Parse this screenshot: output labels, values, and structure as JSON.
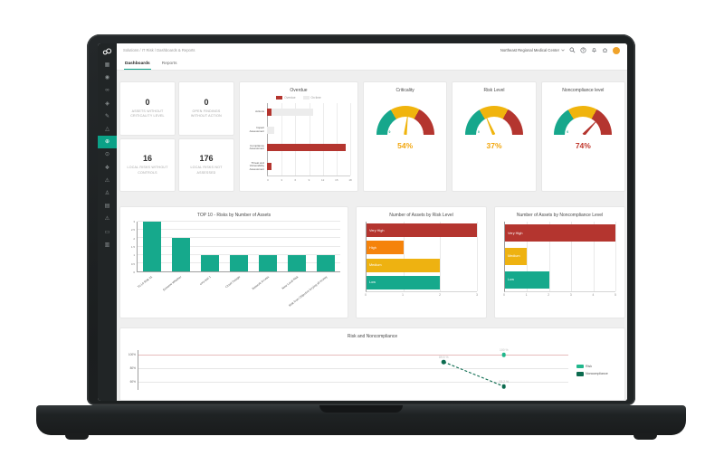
{
  "header": {
    "breadcrumb": "Solutions / IT Risk / Dashboards & Reports",
    "org_selector": "Northeast Regional Medical Center",
    "icons": [
      "search-icon",
      "help-icon",
      "notifications-icon",
      "home-icon"
    ],
    "avatar": {
      "initials": "",
      "color": "#f0a32a"
    }
  },
  "tabs": [
    {
      "label": "Dashboards",
      "active": true
    },
    {
      "label": "Reports",
      "active": false
    }
  ],
  "sidebar": {
    "items": [
      {
        "name": "dashboard",
        "glyph": "▦",
        "active": false
      },
      {
        "name": "monitor",
        "glyph": "◉",
        "active": false
      },
      {
        "name": "integrations",
        "glyph": "∞",
        "active": false
      },
      {
        "name": "objectives",
        "glyph": "◈",
        "active": false
      },
      {
        "name": "assessments",
        "glyph": "✎",
        "active": false
      },
      {
        "name": "incidents",
        "glyph": "△",
        "active": false
      },
      {
        "name": "it-risk",
        "glyph": "⊕",
        "active": true
      },
      {
        "name": "controls",
        "glyph": "⊙",
        "active": false
      },
      {
        "name": "processes",
        "glyph": "❖",
        "active": false
      },
      {
        "name": "issues",
        "glyph": "⚠",
        "active": false
      },
      {
        "name": "people",
        "glyph": "♙",
        "active": false
      },
      {
        "name": "records",
        "glyph": "▤",
        "active": false
      },
      {
        "name": "alerts",
        "glyph": "⚠",
        "active": false
      },
      {
        "name": "files",
        "glyph": "▭",
        "active": false
      },
      {
        "name": "reports",
        "glyph": "▥",
        "active": false
      }
    ]
  },
  "kpis": [
    {
      "value": "0",
      "label": "ASSETS WITHOUT CRITICALITY LEVEL"
    },
    {
      "value": "0",
      "label": "OPEN FINDINGS WITHOUT ACTION"
    },
    {
      "value": "16",
      "label": "LOCAL RISKS WITHOUT CONTROLS"
    },
    {
      "value": "176",
      "label": "LOCAL RISKS NOT ASSESSED"
    }
  ],
  "chart_data": [
    {
      "id": "overdue",
      "type": "bar",
      "orientation": "horizontal",
      "stacked": true,
      "title": "Overdue",
      "categories": [
        "Actions",
        "Impact Assessment",
        "Compliance Assessment",
        "Threat and Vulnerability Assessment"
      ],
      "series": [
        {
          "name": "Overdue",
          "color": "#b4352f",
          "values": [
            1,
            0,
            17,
            1
          ]
        },
        {
          "name": "On time",
          "color": "#ececec",
          "values": [
            9,
            1.5,
            0,
            0
          ]
        }
      ],
      "xlim": [
        0,
        18
      ],
      "xticks": [
        0,
        3,
        6,
        9,
        12,
        15,
        18
      ],
      "legend_position": "top"
    },
    {
      "id": "gauge-criticality",
      "type": "gauge",
      "title": "Criticality",
      "value": 54,
      "display": "54%",
      "min_label": "0",
      "max_label": "100",
      "needle_color": "#f0b40d",
      "value_color": "#f2a60d",
      "segments": [
        {
          "to": 33,
          "color": "#17a78c"
        },
        {
          "to": 66,
          "color": "#f0b40d"
        },
        {
          "to": 100,
          "color": "#b4352f"
        }
      ]
    },
    {
      "id": "gauge-risk",
      "type": "gauge",
      "title": "Risk Level",
      "value": 37,
      "display": "37%",
      "min_label": "0",
      "max_label": "100",
      "needle_color": "#f0b40d",
      "value_color": "#f2a60d",
      "segments": [
        {
          "to": 33,
          "color": "#17a78c"
        },
        {
          "to": 66,
          "color": "#f0b40d"
        },
        {
          "to": 100,
          "color": "#b4352f"
        }
      ]
    },
    {
      "id": "gauge-noncompliance",
      "type": "gauge",
      "title": "Noncompliance level",
      "value": 74,
      "display": "74%",
      "min_label": "0",
      "max_label": "100",
      "needle_color": "#b4352f",
      "value_color": "#c0362b",
      "segments": [
        {
          "to": 33,
          "color": "#17a78c"
        },
        {
          "to": 66,
          "color": "#f0b40d"
        },
        {
          "to": 100,
          "color": "#b4352f"
        }
      ]
    },
    {
      "id": "top10",
      "type": "bar",
      "orientation": "vertical",
      "title": "TOP 10 - Risks by Number of Assets",
      "color": "#16a98c",
      "categories": [
        "T0 L0 Risk 01",
        "Extreme Whether",
        "eXa test 1",
        "Cloud Outage",
        "Network Access",
        "New Local Risk",
        "Risk from Objective levying all money"
      ],
      "values": [
        3,
        2,
        1,
        1,
        1,
        1,
        1
      ],
      "ylim": [
        0,
        3
      ],
      "yticks": [
        0,
        0.5,
        1,
        1.5,
        2,
        2.5,
        3
      ]
    },
    {
      "id": "assets-risk",
      "type": "bar",
      "orientation": "horizontal",
      "title": "Number of Assets by Risk Level",
      "categories": [
        "Very High",
        "High",
        "Medium",
        "Low"
      ],
      "values": [
        3,
        1,
        2,
        2
      ],
      "colors": [
        "#b4352f",
        "#f5830b",
        "#eeb211",
        "#16a98c"
      ],
      "xlim": [
        0,
        3
      ],
      "xticks": [
        0,
        1,
        2,
        3
      ]
    },
    {
      "id": "assets-noncompliance",
      "type": "bar",
      "orientation": "horizontal",
      "title": "Number of Assets by Noncompliance Level",
      "categories": [
        "Very High",
        "Medium",
        "Low"
      ],
      "values": [
        5,
        1,
        2
      ],
      "colors": [
        "#b4352f",
        "#eeb211",
        "#16a98c"
      ],
      "xlim": [
        0,
        5
      ],
      "xticks": [
        0,
        1,
        2,
        3,
        4,
        5
      ]
    },
    {
      "id": "risk-noncompliance",
      "type": "line",
      "title": "Risk and Noncompliance",
      "ymin": 48,
      "ymax": 107,
      "yticks": [
        {
          "label": "100%",
          "value": 100,
          "line_color": "#e6bcbc"
        },
        {
          "label": "80%",
          "value": 80
        },
        {
          "label": "60%",
          "value": 60
        }
      ],
      "series": [
        {
          "name": "Risk",
          "color": "#21b78c",
          "points": [
            {
              "x": 85,
              "y": 100,
              "label": "100 %"
            }
          ]
        },
        {
          "name": "Noncompliance",
          "color": "#0c6b4f",
          "dashed": true,
          "points": [
            {
              "x": 71,
              "y": 89.5,
              "label": "89.5 %"
            },
            {
              "x": 85,
              "y": 53.2,
              "label": "53.2 %"
            }
          ]
        }
      ],
      "legend_position": "right"
    }
  ],
  "colors": {
    "accent_teal": "#0ba187",
    "sidebar_bg": "#212526",
    "red": "#b4352f",
    "orange": "#f5830b",
    "amber": "#eeb211",
    "teal": "#16a98c",
    "dark_green": "#0c6b4f",
    "light_green": "#21b78c",
    "avatar_orange": "#f0a32a"
  }
}
